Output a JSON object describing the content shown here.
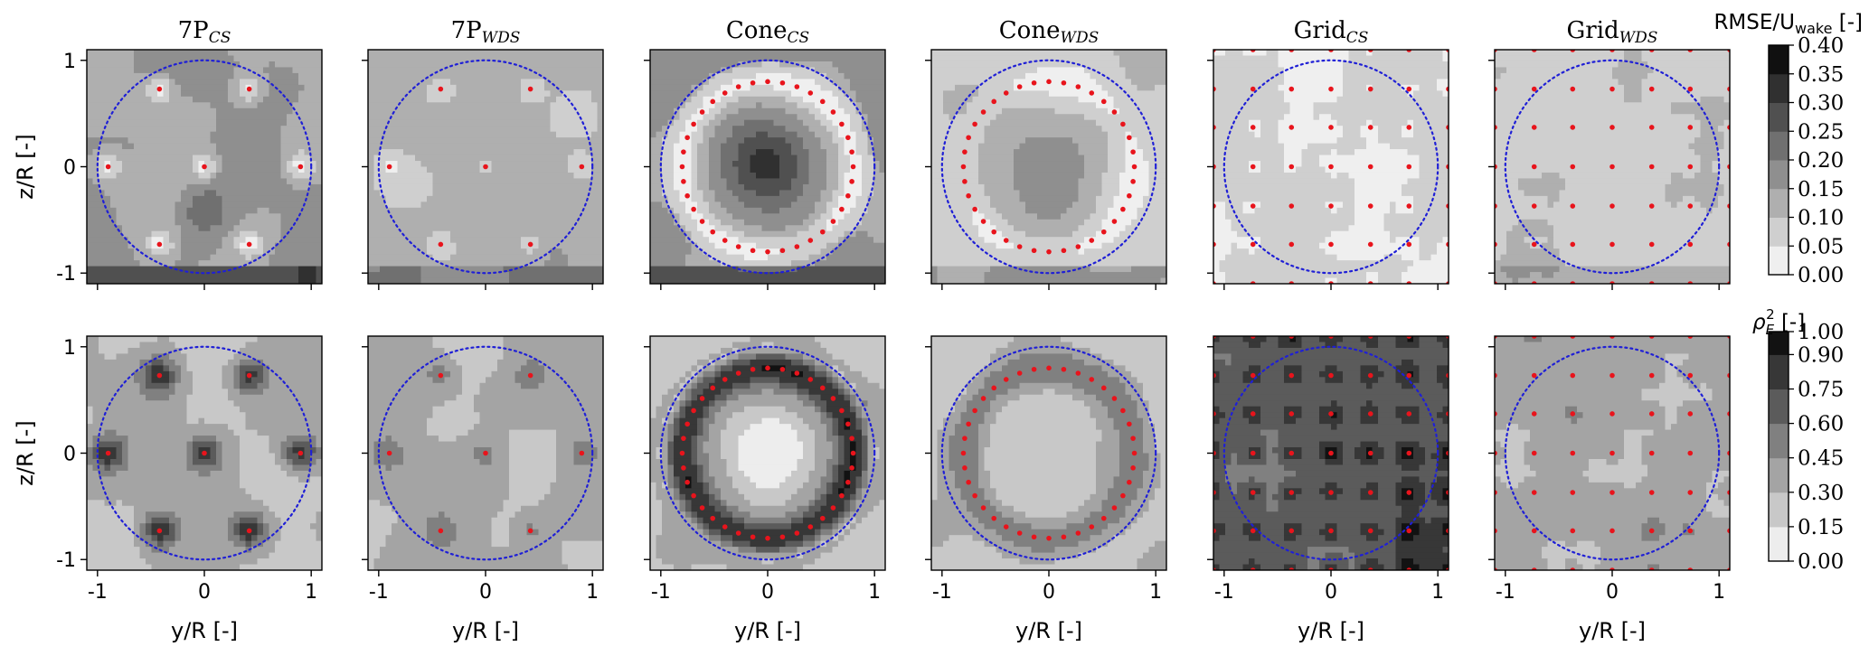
{
  "chart_data": {
    "type": "heatmap",
    "panel_titles": [
      {
        "base": "7P",
        "sub": "CS"
      },
      {
        "base": "7P",
        "sub": "WDS"
      },
      {
        "base": "Cone",
        "sub": "CS"
      },
      {
        "base": "Cone",
        "sub": "WDS"
      },
      {
        "base": "Grid",
        "sub": "CS"
      },
      {
        "base": "Grid",
        "sub": "WDS"
      }
    ],
    "xlabel": "y/R [-]",
    "ylabel": "z/R [-]",
    "xlim": [
      -1.1,
      1.1
    ],
    "ylim": [
      -1.1,
      1.1
    ],
    "x_ticks": [
      -1,
      0,
      1
    ],
    "y_ticks": [
      -1,
      0,
      1
    ],
    "x_tick_labels": [
      "-1",
      "0",
      "1"
    ],
    "y_tick_labels": [
      "-1",
      "0",
      "1"
    ],
    "rotor_radius": 1.0,
    "rows": [
      {
        "metric": "RMSE",
        "colorbar_label": "RMSE/U",
        "colorbar_label_sub": "wake",
        "colorbar_label_unit": " [-]",
        "colorbar_levels": [
          0.0,
          0.05,
          0.1,
          0.15,
          0.2,
          0.25,
          0.3,
          0.35,
          0.4
        ],
        "colorbar_tick_labels": [
          "0.00",
          "0.05",
          "0.10",
          "0.15",
          "0.20",
          "0.25",
          "0.30",
          "0.35",
          "0.40"
        ]
      },
      {
        "metric": "rho_E_squared",
        "colorbar_label": "ρ",
        "colorbar_label_sub": "E",
        "colorbar_label_sup": "2",
        "colorbar_label_unit": " [-]",
        "colorbar_levels": [
          0.0,
          0.15,
          0.3,
          0.45,
          0.6,
          0.75,
          0.9,
          1.0
        ],
        "colorbar_tick_labels": [
          "0.00",
          "0.15",
          "0.30",
          "0.45",
          "0.60",
          "0.75",
          "0.90",
          "1.00"
        ]
      }
    ],
    "colors": {
      "rotor_circle": "#1f1fd6",
      "sensor_points": "#e8141c",
      "colormap": "Greys"
    }
  }
}
